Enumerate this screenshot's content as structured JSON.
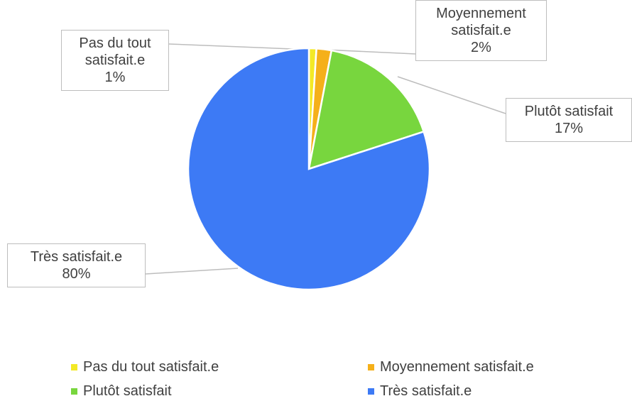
{
  "chart_data": {
    "type": "pie",
    "categories": [
      "Pas du tout satisfait.e",
      "Moyennement satisfait.e",
      "Plutôt satisfait",
      "Très satisfait.e"
    ],
    "values": [
      1,
      2,
      17,
      80
    ],
    "value_labels": [
      "1%",
      "2%",
      "17%",
      "80%"
    ],
    "colors": [
      "#f3e926",
      "#f5b01a",
      "#78d63e",
      "#3d7af5"
    ],
    "legend": "bottom"
  }
}
